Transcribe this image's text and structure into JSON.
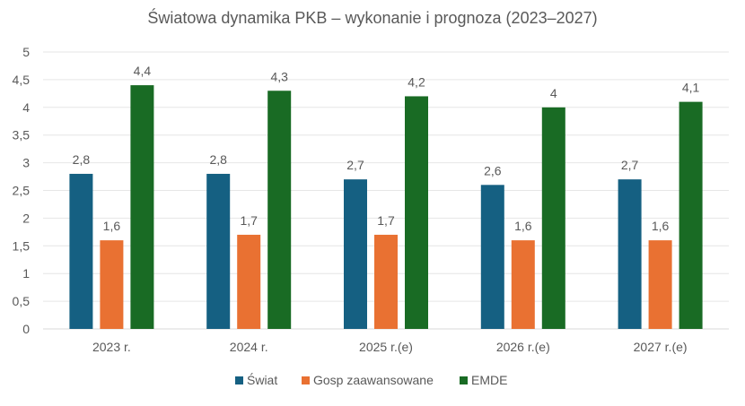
{
  "chart_data": {
    "type": "bar",
    "title": "Światowa dynamika PKB – wykonanie i prognoza (2023–2027)",
    "categories": [
      "2023 r.",
      "2024 r.",
      "2025 r.(e)",
      "2026 r.(e)",
      "2027 r.(e)"
    ],
    "series": [
      {
        "name": "Świat",
        "color": "#156082",
        "values": [
          2.8,
          2.8,
          2.7,
          2.6,
          2.7
        ],
        "labels": [
          "2,8",
          "2,8",
          "2,7",
          "2,6",
          "2,7"
        ]
      },
      {
        "name": "Gosp zaawansowane",
        "color": "#E97132",
        "values": [
          1.6,
          1.7,
          1.7,
          1.6,
          1.6
        ],
        "labels": [
          "1,6",
          "1,7",
          "1,7",
          "1,6",
          "1,6"
        ]
      },
      {
        "name": "EMDE",
        "color": "#196B24",
        "values": [
          4.4,
          4.3,
          4.2,
          4.0,
          4.1
        ],
        "labels": [
          "4,4",
          "4,3",
          "4,2",
          "4",
          "4,1"
        ]
      }
    ],
    "ylim": [
      0,
      5
    ],
    "yticks": [
      0,
      0.5,
      1,
      1.5,
      2,
      2.5,
      3,
      3.5,
      4,
      4.5,
      5
    ],
    "ytick_labels": [
      "0",
      "0,5",
      "1",
      "1,5",
      "2",
      "2,5",
      "3",
      "3,5",
      "4",
      "4,5",
      "5"
    ],
    "grid": true,
    "legend": "bottom"
  }
}
